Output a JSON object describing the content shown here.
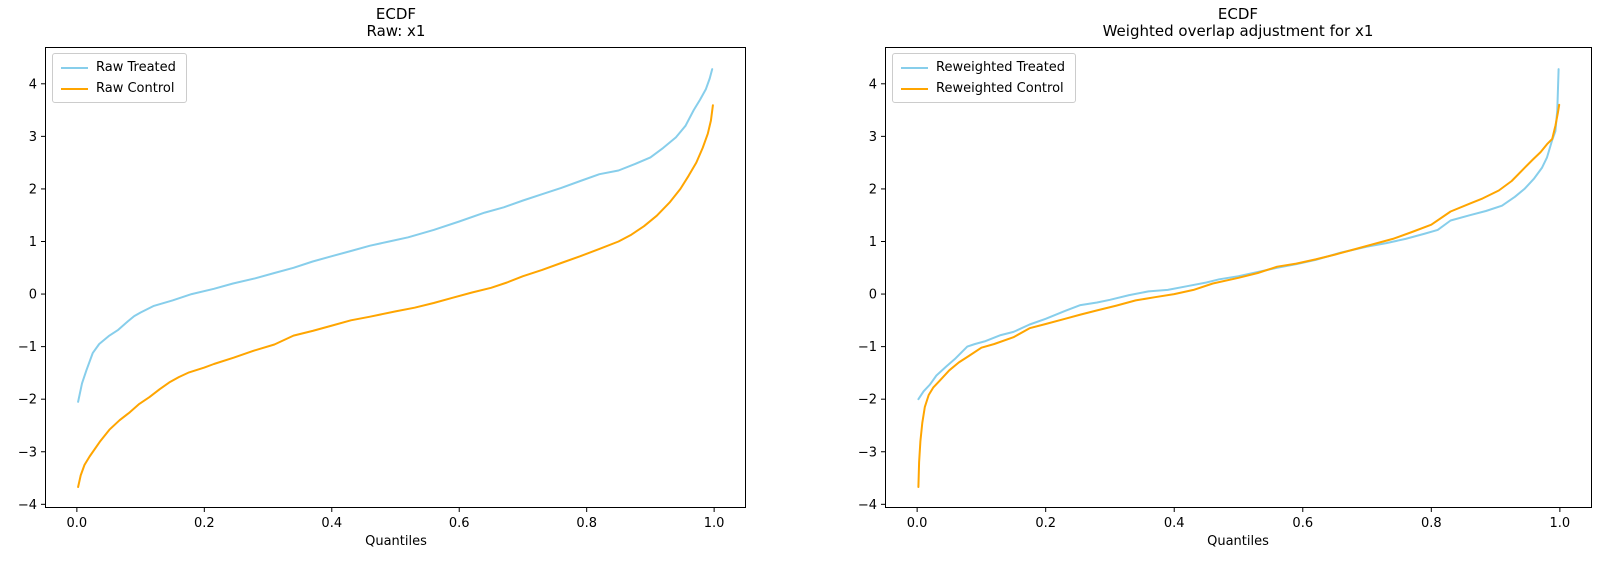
{
  "figure": {
    "background": "#ffffff"
  },
  "styles": {
    "treated_color": "#87CEEB",
    "control_color": "#FFA500",
    "spine_color": "#000000",
    "text_color": "#000000",
    "legend_border": "#cccccc",
    "legend_background": "#ffffff"
  },
  "charts": [
    {
      "title_line1": "ECDF",
      "title_line2": "Raw: x1"
    },
    {
      "title_line1": "ECDF",
      "title_line2": "Weighted overlap adjustment for x1"
    }
  ],
  "chart_data": [
    {
      "type": "line",
      "title": "ECDF\nRaw: x1",
      "xlabel": "Quantiles",
      "ylabel": "",
      "xlim": [
        -0.05,
        1.05
      ],
      "ylim": [
        -4.07,
        4.7
      ],
      "x_ticks": [
        0.0,
        0.2,
        0.4,
        0.6,
        0.8,
        1.0
      ],
      "y_ticks": [
        -4,
        -3,
        -2,
        -1,
        0,
        1,
        2,
        3,
        4
      ],
      "grid": false,
      "legend_position": "upper left",
      "series": [
        {
          "name": "Raw Treated",
          "color": "#87CEEB",
          "x": [
            0.002,
            0.008,
            0.015,
            0.025,
            0.035,
            0.05,
            0.065,
            0.08,
            0.09,
            0.1,
            0.12,
            0.15,
            0.18,
            0.215,
            0.245,
            0.28,
            0.31,
            0.34,
            0.37,
            0.4,
            0.43,
            0.46,
            0.49,
            0.52,
            0.56,
            0.6,
            0.64,
            0.67,
            0.7,
            0.73,
            0.76,
            0.79,
            0.82,
            0.85,
            0.875,
            0.9,
            0.92,
            0.94,
            0.955,
            0.968,
            0.978,
            0.987,
            0.993,
            0.997
          ],
          "y": [
            -2.05,
            -1.7,
            -1.45,
            -1.12,
            -0.95,
            -0.8,
            -0.68,
            -0.52,
            -0.42,
            -0.35,
            -0.23,
            -0.12,
            0.0,
            0.1,
            0.2,
            0.3,
            0.4,
            0.5,
            0.62,
            0.72,
            0.82,
            0.92,
            1.0,
            1.08,
            1.22,
            1.38,
            1.55,
            1.65,
            1.78,
            1.9,
            2.02,
            2.15,
            2.28,
            2.35,
            2.47,
            2.6,
            2.78,
            2.98,
            3.2,
            3.5,
            3.7,
            3.9,
            4.1,
            4.28
          ]
        },
        {
          "name": "Raw Control",
          "color": "#FFA500",
          "x": [
            0.002,
            0.006,
            0.012,
            0.02,
            0.036,
            0.051,
            0.067,
            0.083,
            0.098,
            0.114,
            0.13,
            0.145,
            0.16,
            0.176,
            0.2,
            0.215,
            0.246,
            0.277,
            0.31,
            0.34,
            0.37,
            0.4,
            0.43,
            0.46,
            0.5,
            0.53,
            0.56,
            0.59,
            0.62,
            0.65,
            0.675,
            0.7,
            0.73,
            0.76,
            0.79,
            0.82,
            0.85,
            0.87,
            0.89,
            0.91,
            0.93,
            0.947,
            0.96,
            0.972,
            0.982,
            0.99,
            0.995,
            0.998
          ],
          "y": [
            -3.67,
            -3.45,
            -3.25,
            -3.09,
            -2.81,
            -2.58,
            -2.4,
            -2.25,
            -2.09,
            -1.96,
            -1.81,
            -1.68,
            -1.58,
            -1.49,
            -1.4,
            -1.33,
            -1.21,
            -1.08,
            -0.96,
            -0.79,
            -0.7,
            -0.6,
            -0.5,
            -0.43,
            -0.33,
            -0.26,
            -0.17,
            -0.07,
            0.03,
            0.12,
            0.22,
            0.34,
            0.46,
            0.59,
            0.72,
            0.86,
            1.0,
            1.13,
            1.29,
            1.49,
            1.74,
            2.0,
            2.25,
            2.5,
            2.78,
            3.05,
            3.3,
            3.59
          ]
        }
      ]
    },
    {
      "type": "line",
      "title": "ECDF\nWeighted overlap adjustment for x1",
      "xlabel": "Quantiles",
      "ylabel": "",
      "xlim": [
        -0.05,
        1.05
      ],
      "ylim": [
        -4.07,
        4.7
      ],
      "x_ticks": [
        0.0,
        0.2,
        0.4,
        0.6,
        0.8,
        1.0
      ],
      "y_ticks": [
        -4,
        -3,
        -2,
        -1,
        0,
        1,
        2,
        3,
        4
      ],
      "grid": false,
      "legend_position": "upper left",
      "series": [
        {
          "name": "Reweighted Treated",
          "color": "#87CEEB",
          "x": [
            0.002,
            0.01,
            0.02,
            0.03,
            0.045,
            0.06,
            0.078,
            0.09,
            0.105,
            0.13,
            0.15,
            0.175,
            0.2,
            0.23,
            0.254,
            0.28,
            0.3,
            0.33,
            0.36,
            0.39,
            0.42,
            0.45,
            0.47,
            0.5,
            0.53,
            0.56,
            0.59,
            0.62,
            0.66,
            0.7,
            0.73,
            0.76,
            0.79,
            0.81,
            0.83,
            0.86,
            0.885,
            0.91,
            0.93,
            0.945,
            0.96,
            0.972,
            0.98,
            0.988,
            0.993,
            0.996,
            0.998
          ],
          "y": [
            -2.0,
            -1.85,
            -1.72,
            -1.55,
            -1.38,
            -1.22,
            -1.0,
            -0.95,
            -0.9,
            -0.78,
            -0.72,
            -0.58,
            -0.47,
            -0.32,
            -0.21,
            -0.16,
            -0.11,
            -0.02,
            0.05,
            0.08,
            0.15,
            0.22,
            0.28,
            0.34,
            0.42,
            0.5,
            0.57,
            0.65,
            0.79,
            0.9,
            0.97,
            1.05,
            1.15,
            1.22,
            1.4,
            1.5,
            1.58,
            1.68,
            1.85,
            2.0,
            2.2,
            2.4,
            2.6,
            2.93,
            3.1,
            3.5,
            4.28
          ]
        },
        {
          "name": "Reweighted Control",
          "color": "#FFA500",
          "x": [
            0.002,
            0.003,
            0.005,
            0.008,
            0.012,
            0.018,
            0.025,
            0.035,
            0.05,
            0.065,
            0.08,
            0.1,
            0.12,
            0.15,
            0.175,
            0.2,
            0.23,
            0.254,
            0.28,
            0.31,
            0.34,
            0.37,
            0.4,
            0.43,
            0.46,
            0.5,
            0.53,
            0.56,
            0.59,
            0.62,
            0.65,
            0.68,
            0.71,
            0.74,
            0.77,
            0.8,
            0.83,
            0.86,
            0.88,
            0.905,
            0.925,
            0.945,
            0.958,
            0.97,
            0.98,
            0.988,
            0.993,
            0.997,
            0.999
          ],
          "y": [
            -3.67,
            -3.2,
            -2.8,
            -2.45,
            -2.15,
            -1.92,
            -1.78,
            -1.65,
            -1.45,
            -1.3,
            -1.18,
            -1.02,
            -0.95,
            -0.82,
            -0.65,
            -0.57,
            -0.47,
            -0.39,
            -0.31,
            -0.22,
            -0.12,
            -0.06,
            0.0,
            0.08,
            0.2,
            0.31,
            0.4,
            0.52,
            0.58,
            0.66,
            0.75,
            0.85,
            0.95,
            1.05,
            1.18,
            1.32,
            1.57,
            1.72,
            1.82,
            1.97,
            2.15,
            2.4,
            2.56,
            2.7,
            2.85,
            2.95,
            3.2,
            3.45,
            3.6
          ]
        }
      ]
    }
  ]
}
